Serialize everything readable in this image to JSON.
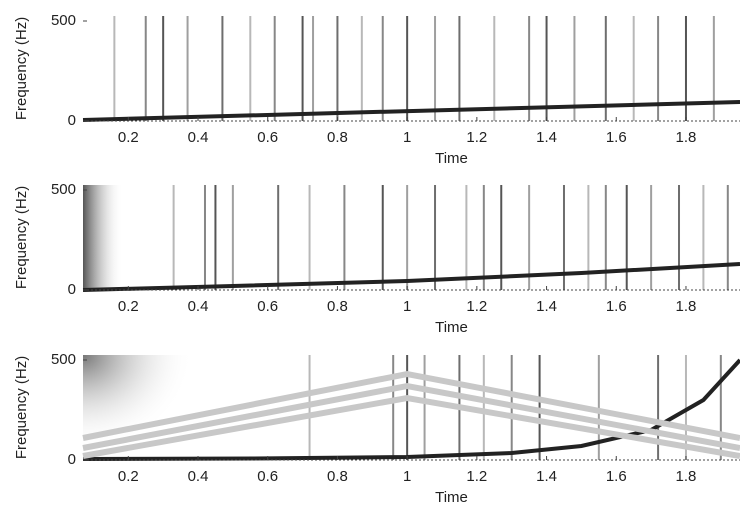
{
  "chart_data": [
    {
      "type": "spectrogram",
      "xlabel": "Time",
      "ylabel": "Frequency (Hz)",
      "xlim": [
        0.07,
        1.955
      ],
      "ylim": [
        0,
        525
      ],
      "xticks": [
        0.2,
        0.4,
        0.6,
        0.8,
        1,
        1.2,
        1.4,
        1.6,
        1.8
      ],
      "yticks": [
        0,
        500
      ],
      "impulses": [
        0.16,
        0.25,
        0.3,
        0.37,
        0.47,
        0.55,
        0.62,
        0.7,
        0.73,
        0.8,
        0.87,
        0.93,
        1.0,
        1.08,
        1.15,
        1.25,
        1.35,
        1.4,
        1.48,
        1.57,
        1.65,
        1.72,
        1.8,
        1.88
      ],
      "ridges": [
        {
          "x": [
            0.07,
            1.955
          ],
          "y": [
            5,
            95
          ]
        }
      ]
    },
    {
      "type": "spectrogram",
      "xlabel": "Time",
      "ylabel": "Frequency (Hz)",
      "xlim": [
        0.07,
        1.955
      ],
      "ylim": [
        0,
        525
      ],
      "xticks": [
        0.2,
        0.4,
        0.6,
        0.8,
        1,
        1.2,
        1.4,
        1.6,
        1.8
      ],
      "yticks": [
        0,
        500
      ],
      "impulses": [
        0.33,
        0.42,
        0.45,
        0.5,
        0.63,
        0.72,
        0.82,
        0.93,
        1.0,
        1.08,
        1.17,
        1.22,
        1.27,
        1.35,
        1.45,
        1.52,
        1.57,
        1.63,
        1.7,
        1.78,
        1.85,
        1.92
      ],
      "ridges": [
        {
          "x": [
            0.07,
            0.5,
            1.0,
            1.5,
            1.955
          ],
          "y": [
            0,
            20,
            45,
            85,
            130
          ]
        }
      ]
    },
    {
      "type": "spectrogram",
      "xlabel": "Time",
      "ylabel": "Frequency (Hz)",
      "xlim": [
        0.07,
        1.955
      ],
      "ylim": [
        0,
        525
      ],
      "xticks": [
        0.2,
        0.4,
        0.6,
        0.8,
        1,
        1.2,
        1.4,
        1.6,
        1.8
      ],
      "yticks": [
        0,
        500
      ],
      "impulses": [
        0.72,
        0.96,
        1.0,
        1.05,
        1.15,
        1.22,
        1.3,
        1.38,
        1.55,
        1.72,
        1.8,
        1.9
      ],
      "ridges": [
        {
          "x": [
            0.07,
            0.6,
            1.0,
            1.3,
            1.5,
            1.7,
            1.85,
            1.955
          ],
          "y": [
            5,
            8,
            15,
            35,
            70,
            150,
            300,
            500
          ]
        },
        {
          "x": [
            0.07,
            1.0,
            1.955
          ],
          "y": [
            110,
            430,
            110
          ],
          "color": "#c8c8c8"
        },
        {
          "x": [
            0.07,
            1.0,
            1.955
          ],
          "y": [
            60,
            370,
            60
          ],
          "color": "#c8c8c8"
        },
        {
          "x": [
            0.07,
            1.0,
            1.955
          ],
          "y": [
            20,
            310,
            20
          ],
          "color": "#c8c8c8"
        }
      ]
    }
  ]
}
